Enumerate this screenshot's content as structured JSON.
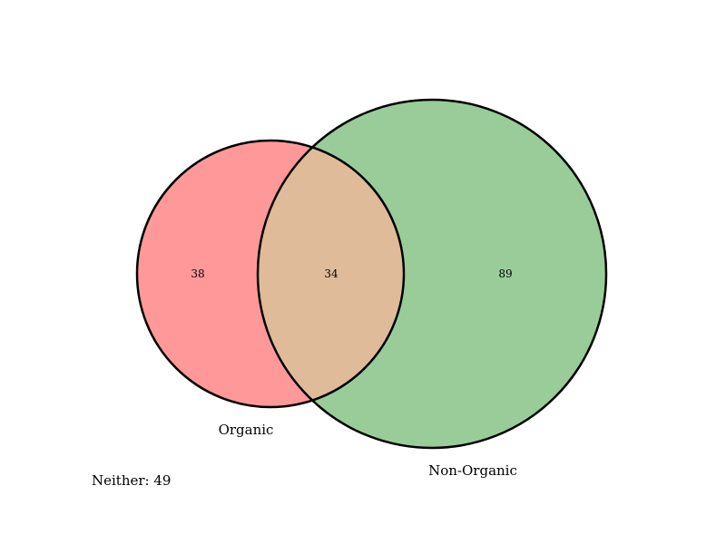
{
  "diagram": {
    "type": "venn2",
    "sets": [
      {
        "name": "Organic",
        "color": "#ff9999"
      },
      {
        "name": "Non-Organic",
        "color": "#99cc99"
      }
    ],
    "intersection_color": "#e0bb99",
    "regions": {
      "only_a": "38",
      "both": "34",
      "only_b": "89"
    },
    "neither_text": "Neither: 49"
  }
}
